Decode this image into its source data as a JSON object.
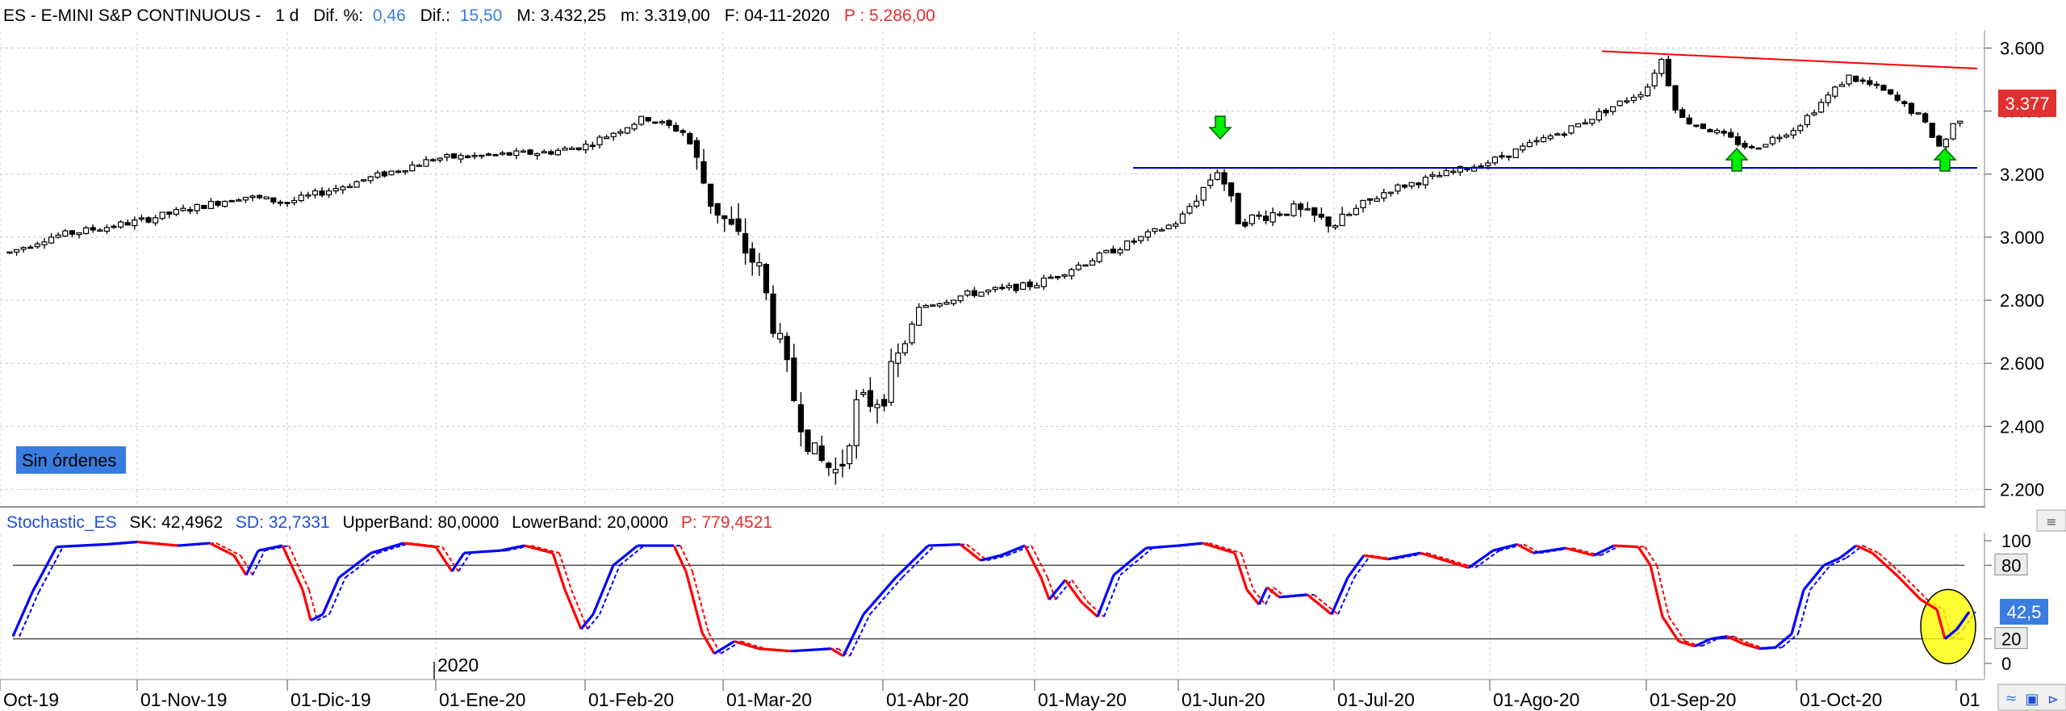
{
  "header": {
    "symbol": "ES - E-MINI S&P CONTINUOUS -",
    "period": "1 d",
    "dif_pct_label": "Dif. %:",
    "dif_pct_value": "0,46",
    "dif_label": "Dif.:",
    "dif_value": "15,50",
    "max": "M: 3.432,25",
    "min": "m: 3.319,00",
    "date": "F: 04-11-2020",
    "points": "P : 5.286,00"
  },
  "orders_badge": "Sin órdenes",
  "last_price": "3.377",
  "indicator_header": {
    "name": "Stochastic_ES",
    "sk": "SK: 42,4962",
    "sd": "SD: 32,7331",
    "upper": "UpperBand: 80,0000",
    "lower": "LowerBand: 20,0000",
    "points": "P: 779,4521"
  },
  "year_marker": "2020",
  "colors": {
    "up": "#ffffff",
    "down": "#000000",
    "sk_up": "#0000ff",
    "sk_down": "#ff0000",
    "resistance": "#ff0000",
    "support": "#0000cc",
    "arrow": "#00ee00",
    "highlight": "#ffff00",
    "price_box": "#e03030",
    "sk_box": "#3a7de0",
    "badge": "#3a7de0"
  },
  "icons": [
    "save-icon",
    "chart-settings-icon"
  ],
  "chart_data": [
    {
      "type": "candlestick",
      "title": "ES - E-MINI S&P CONTINUOUS",
      "x_ticks": [
        "Oct-19",
        "01-Nov-19",
        "01-Dic-19",
        "01-Ene-20",
        "01-Feb-20",
        "01-Mar-20",
        "01-Abr-20",
        "01-May-20",
        "01-Jun-20",
        "01-Jul-20",
        "01-Ago-20",
        "01-Sep-20",
        "01-Oct-20",
        "01"
      ],
      "y_ticks": [
        "3.600",
        "3.400",
        "3.200",
        "3.000",
        "2.800",
        "2.600",
        "2.400",
        "2.200"
      ],
      "ylim": [
        2150,
        3650
      ],
      "closes_monthly_approx": [
        {
          "date": "Oct-19",
          "close": 2980
        },
        {
          "date": "01-Nov-19",
          "close": 3040
        },
        {
          "date": "01-Dic-19",
          "close": 3140
        },
        {
          "date": "01-Ene-20",
          "close": 3230
        },
        {
          "date": "01-Feb-20",
          "close": 3250
        },
        {
          "date": "01-Mar-20",
          "close": 2950
        },
        {
          "date": "01-Abr-20",
          "close": 2500
        },
        {
          "date": "01-May-20",
          "close": 2870
        },
        {
          "date": "01-Jun-20",
          "close": 3040
        },
        {
          "date": "01-Jul-20",
          "close": 3100
        },
        {
          "date": "01-Ago-20",
          "close": 3270
        },
        {
          "date": "01-Sep-20",
          "close": 3500
        },
        {
          "date": "01-Oct-20",
          "close": 3360
        },
        {
          "date": "01",
          "close": 3377
        }
      ],
      "min_low": 2180,
      "max_high": 3590,
      "support_line": 3220,
      "resistance_line": {
        "start": 3590,
        "end": 3535
      }
    },
    {
      "type": "line",
      "title": "Stochastic_ES",
      "y_ticks": [
        "100",
        "80",
        "20",
        "0"
      ],
      "ylim": [
        0,
        100
      ],
      "bands": [
        80,
        20
      ],
      "series": [
        {
          "name": "SK",
          "last": 42.4962
        },
        {
          "name": "SD",
          "last": 32.7331
        }
      ],
      "sk_label": "42,5"
    }
  ]
}
